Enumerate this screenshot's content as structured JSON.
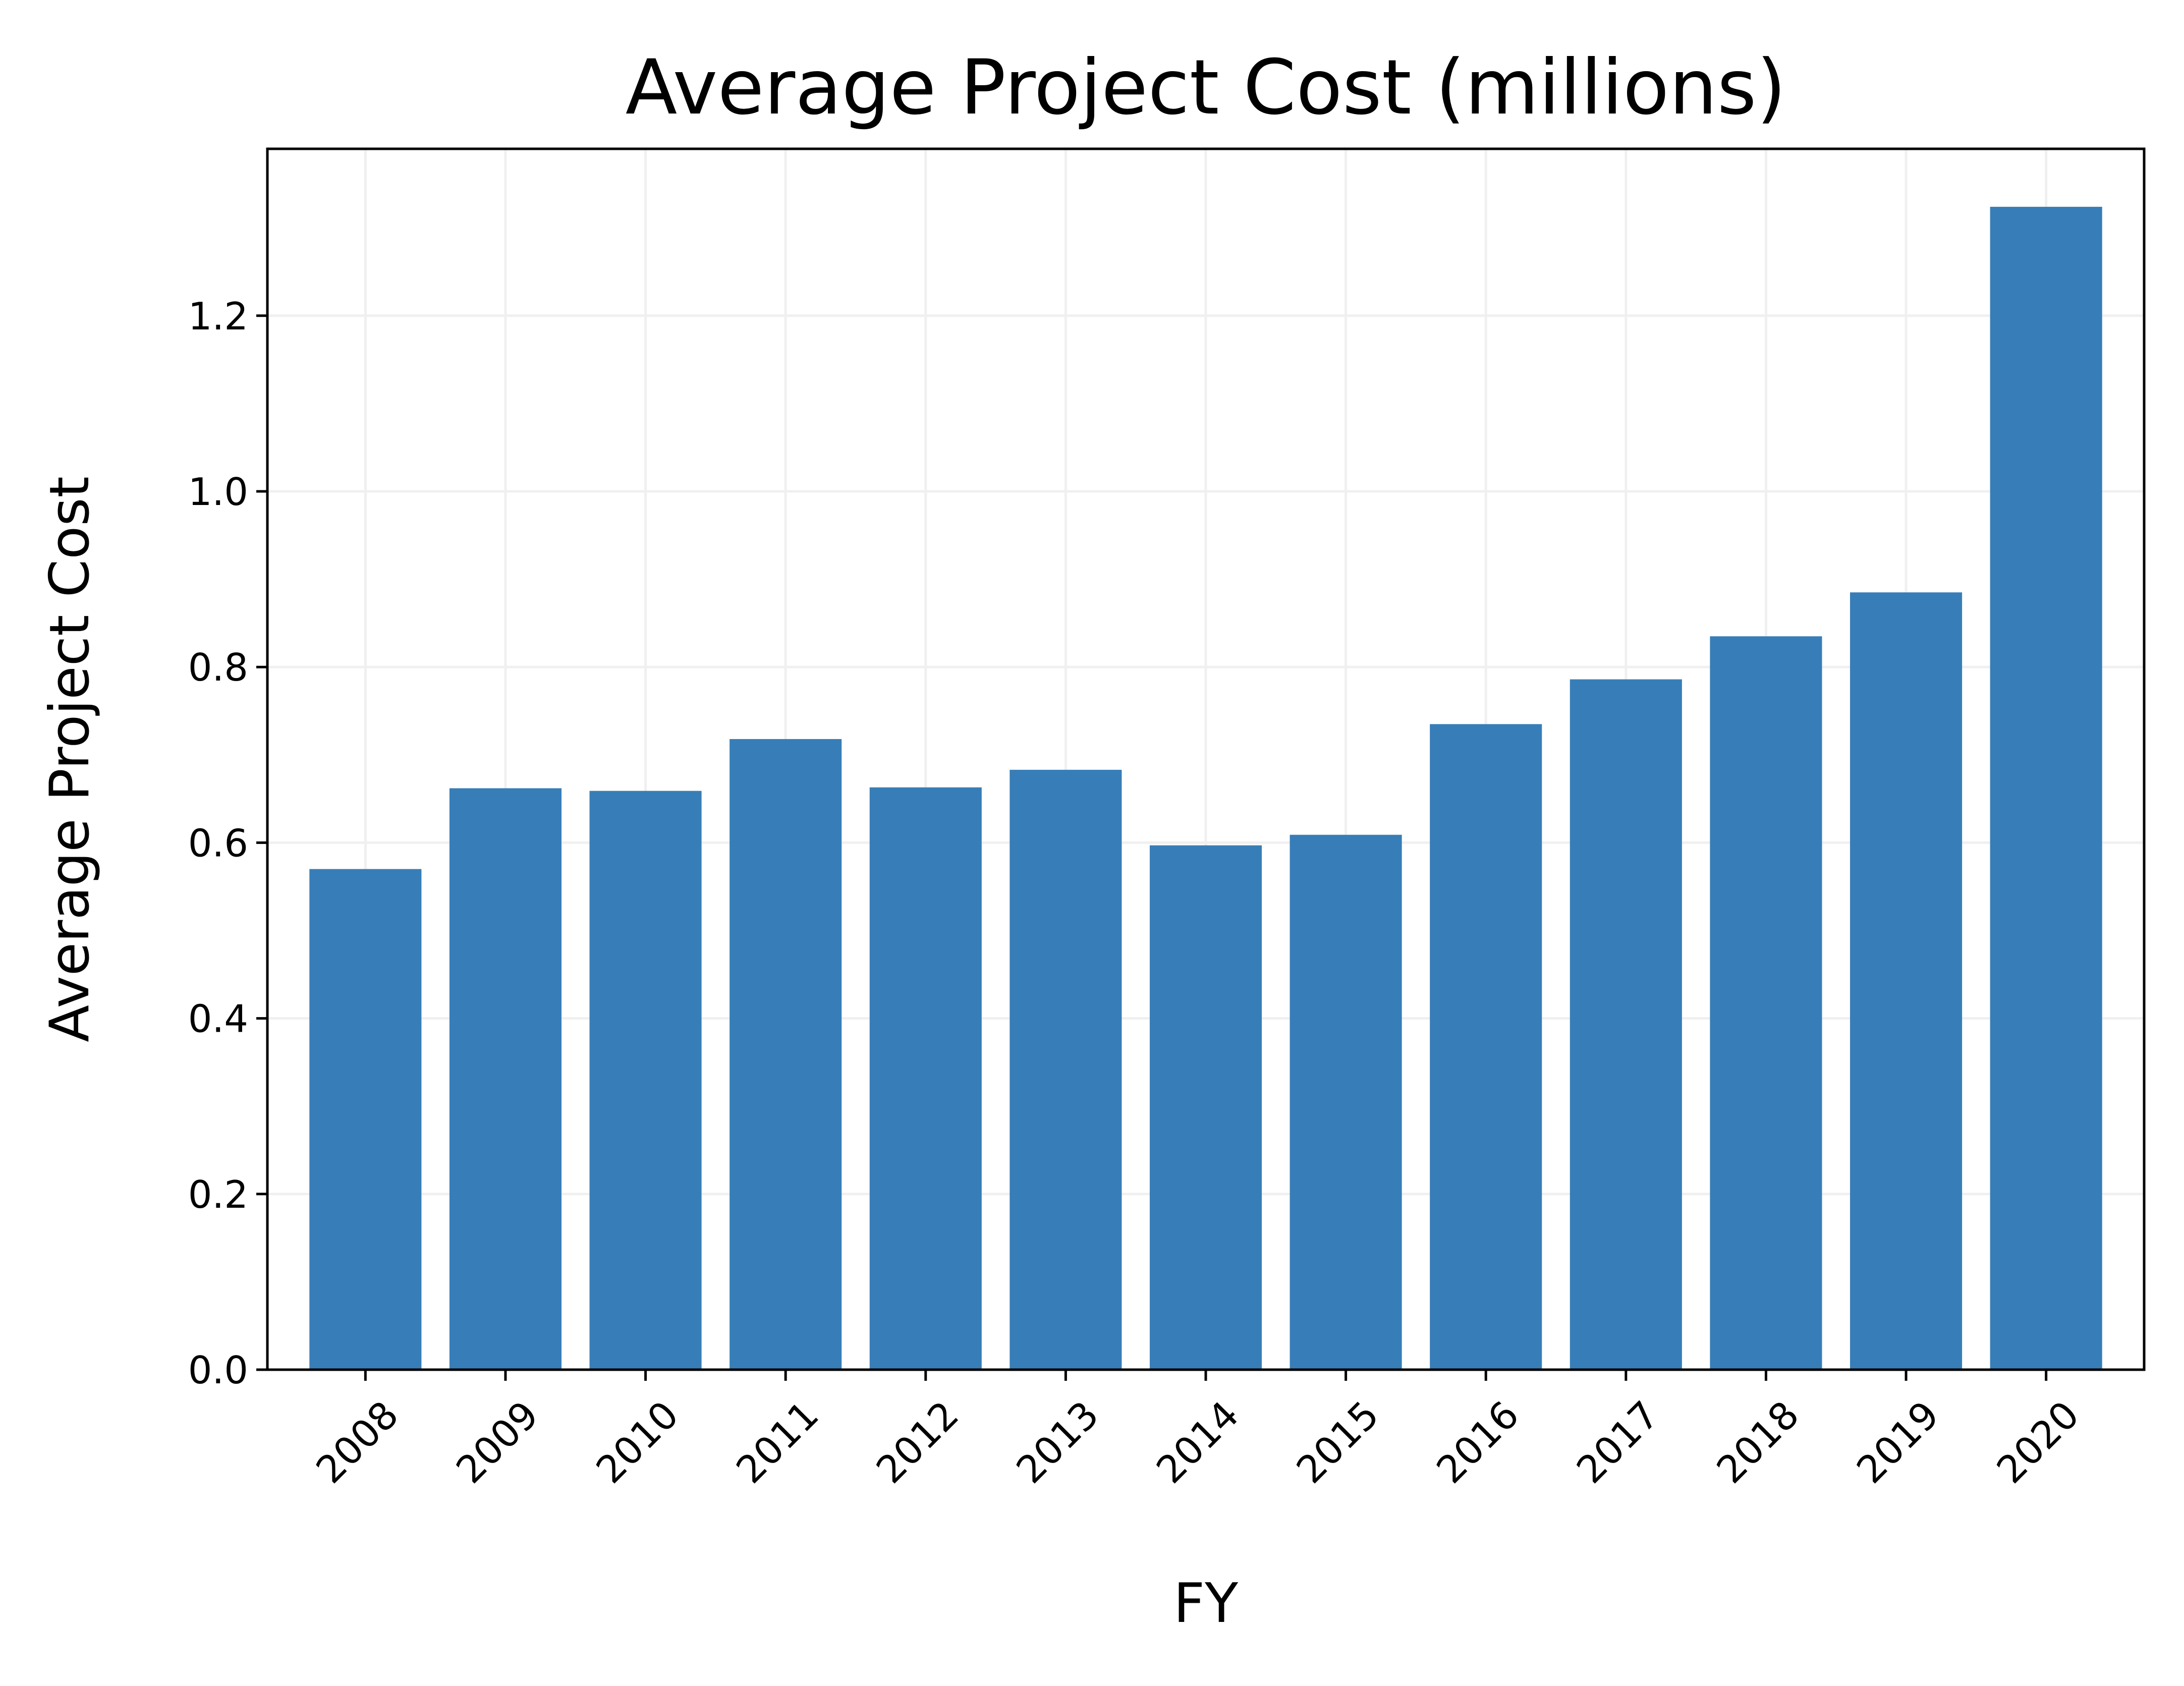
{
  "chart_data": {
    "type": "bar",
    "title": "Average Project Cost (millions)",
    "xlabel": "FY",
    "ylabel": "Average Project Cost",
    "categories": [
      "2008",
      "2009",
      "2010",
      "2011",
      "2012",
      "2013",
      "2014",
      "2015",
      "2016",
      "2017",
      "2018",
      "2019",
      "2020"
    ],
    "values": [
      0.57,
      0.662,
      0.659,
      0.718,
      0.663,
      0.683,
      0.597,
      0.609,
      0.735,
      0.786,
      0.835,
      0.885,
      1.324
    ],
    "ylim": [
      0,
      1.39
    ],
    "yticks": [
      "0.0",
      "0.2",
      "0.4",
      "0.6",
      "0.8",
      "1.0",
      "1.2"
    ],
    "ytick_values": [
      0,
      0.2,
      0.4,
      0.6,
      0.8,
      1.0,
      1.2
    ],
    "grid": true,
    "bar_color": "#377eb8",
    "grid_color": "#f0f0f0"
  }
}
